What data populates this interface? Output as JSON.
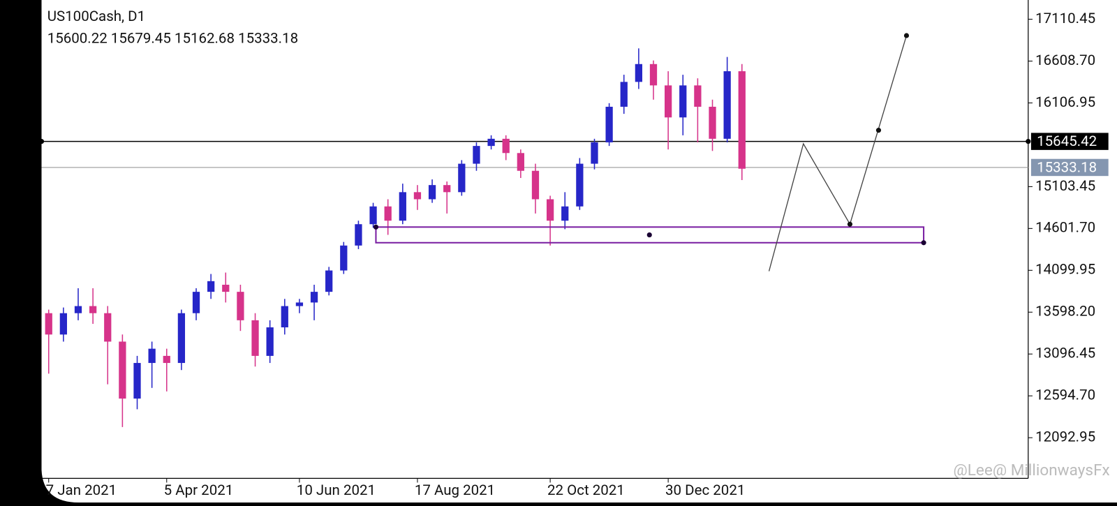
{
  "chart_data": {
    "type": "candlestick",
    "title": "US100Cash, D1",
    "ohlc_text": "15600.22 15679.45 15162.68 15333.18",
    "watermark": "@Lee@ MillionwaysFx",
    "categories": [
      "7 Jan 2021",
      null,
      null,
      null,
      null,
      null,
      null,
      null,
      "5 Apr 2021",
      null,
      null,
      null,
      null,
      null,
      null,
      null,
      null,
      "10 Jun 2021",
      null,
      null,
      null,
      null,
      null,
      null,
      null,
      "17 Aug 2021",
      null,
      null,
      null,
      null,
      null,
      null,
      null,
      null,
      "22 Oct 2021",
      null,
      null,
      null,
      null,
      null,
      null,
      null,
      "30 Dec 2021",
      null,
      null,
      null,
      null,
      null
    ],
    "open": [
      13586,
      13330,
      13586,
      13671,
      13586,
      13245,
      12562,
      12989,
      13074,
      12989,
      13586,
      13842,
      13927,
      13842,
      13501,
      13074,
      13416,
      13671,
      13714,
      13842,
      14098,
      14397,
      14653,
      14866,
      14695,
      15037,
      14952,
      15122,
      15037,
      15378,
      15591,
      15677,
      15506,
      15293,
      14952,
      14695,
      14866,
      15378,
      15634,
      16061,
      16359,
      16573,
      16317,
      15933,
      16317,
      16061,
      15677,
      16487
    ],
    "high": [
      13629,
      13654,
      13885,
      13885,
      13671,
      13330,
      13074,
      13245,
      13160,
      13629,
      13885,
      14056,
      14073,
      13927,
      13586,
      13501,
      13757,
      13757,
      13927,
      14141,
      14440,
      14695,
      14909,
      14952,
      15139,
      15122,
      15190,
      15165,
      15421,
      15634,
      15719,
      15719,
      15549,
      15378,
      14994,
      15037,
      15446,
      15677,
      16104,
      16445,
      16761,
      16616,
      16487,
      16445,
      16402,
      16146,
      16658,
      16573
    ],
    "low": [
      12861,
      13245,
      13501,
      13458,
      12733,
      12221,
      12434,
      12690,
      12648,
      12904,
      13501,
      13757,
      13714,
      13373,
      12946,
      12989,
      13330,
      13586,
      13501,
      13799,
      14056,
      14354,
      14610,
      14525,
      14653,
      14824,
      14909,
      14781,
      14994,
      15293,
      15549,
      15421,
      15207,
      14781,
      14397,
      14593,
      14824,
      15310,
      15591,
      15976,
      16274,
      16146,
      15549,
      15719,
      15634,
      15531,
      15634,
      15182
    ],
    "close": [
      13330,
      13586,
      13671,
      13586,
      13245,
      12562,
      12989,
      13160,
      12989,
      13586,
      13842,
      13970,
      13842,
      13501,
      13074,
      13416,
      13671,
      13714,
      13842,
      14098,
      14397,
      14653,
      14866,
      14695,
      15037,
      14952,
      15122,
      15037,
      15378,
      15591,
      15677,
      15506,
      15293,
      14952,
      14695,
      14866,
      15378,
      15634,
      16061,
      16359,
      16573,
      16317,
      15933,
      16317,
      16061,
      15677,
      16487,
      15318
    ],
    "up_color": "#2626c8",
    "down_color": "#d6338a",
    "ylim": [
      11606,
      17341
    ],
    "yticks": [
      17110.45,
      {
        "value": 16608.7,
        "label": "16608.70"
      },
      16106.95,
      15103.45,
      {
        "value": 14601.7,
        "label": "14601.70"
      },
      14099.95,
      {
        "value": 13598.2,
        "label": "13598.20"
      },
      13096.45,
      {
        "value": 12594.7,
        "label": "12594.70"
      },
      12092.95
    ],
    "level": 15645.42,
    "last_price": 15333.18
  }
}
